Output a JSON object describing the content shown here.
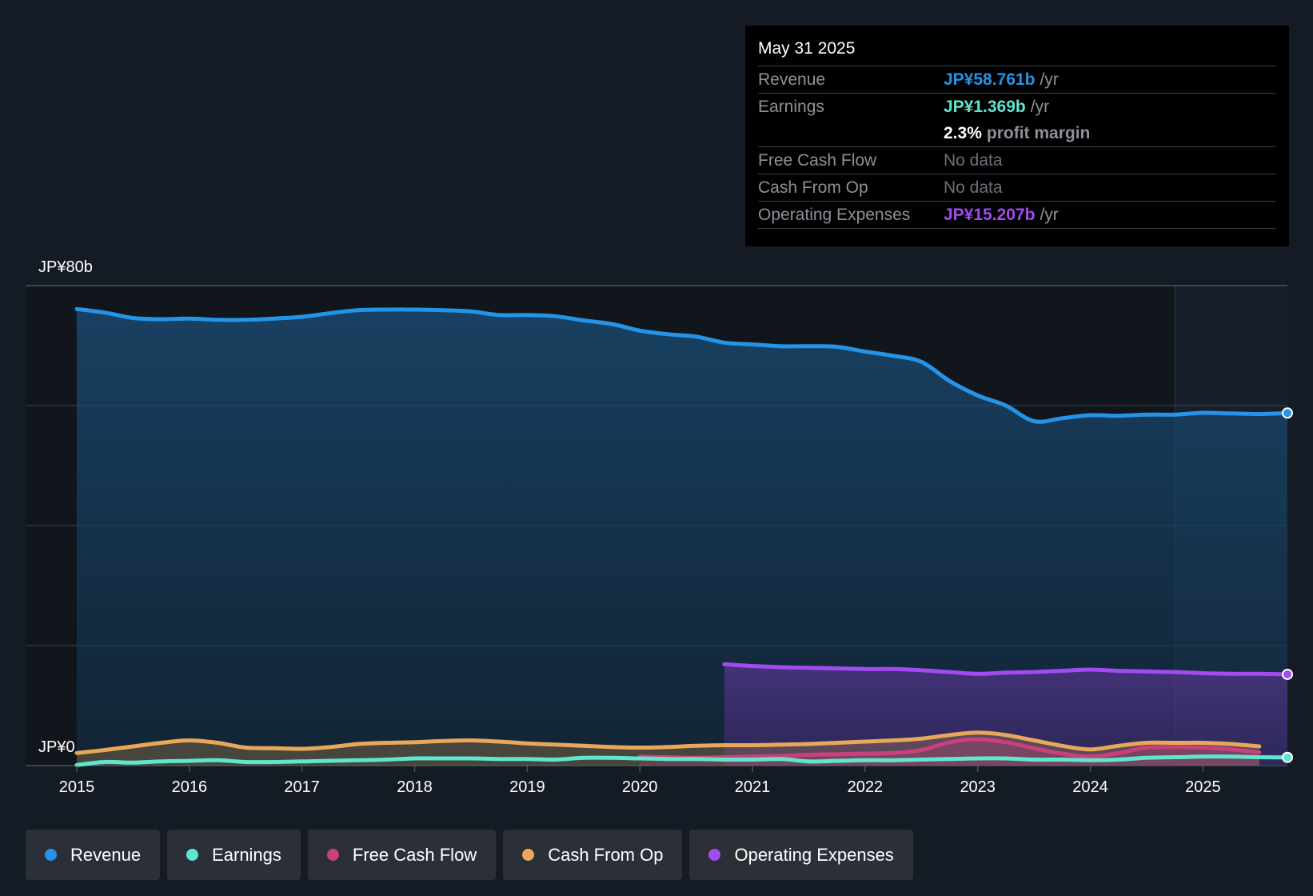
{
  "tooltip": {
    "date": "May 31 2025",
    "rows": {
      "revenue": {
        "label": "Revenue",
        "value": "JP¥58.761b",
        "unit": "/yr"
      },
      "earnings": {
        "label": "Earnings",
        "value": "JP¥1.369b",
        "unit": "/yr"
      },
      "margin": {
        "value": "2.3%",
        "text": "profit margin"
      },
      "fcf": {
        "label": "Free Cash Flow",
        "value": "No data"
      },
      "cfo": {
        "label": "Cash From Op",
        "value": "No data"
      },
      "opex": {
        "label": "Operating Expenses",
        "value": "JP¥15.207b",
        "unit": "/yr"
      }
    }
  },
  "legend": [
    {
      "label": "Revenue",
      "color": "#2394e8"
    },
    {
      "label": "Earnings",
      "color": "#5ee6cf"
    },
    {
      "label": "Free Cash Flow",
      "color": "#c9417a"
    },
    {
      "label": "Cash From Op",
      "color": "#e8a857"
    },
    {
      "label": "Operating Expenses",
      "color": "#a24bf0"
    }
  ],
  "chart_data": {
    "type": "area",
    "title": "",
    "xlabel": "",
    "ylabel": "",
    "y_top_label": "JP¥80b",
    "y_bottom_label": "JP¥0",
    "ylim": [
      0,
      80
    ],
    "xlim": [
      2014.67,
      2025.42
    ],
    "x_ticks": [
      "2015",
      "2016",
      "2017",
      "2018",
      "2019",
      "2020",
      "2021",
      "2022",
      "2023",
      "2024",
      "2025"
    ],
    "forecast_start": 2024.42,
    "series": [
      {
        "name": "Revenue",
        "color": "#2394e8",
        "fill": true,
        "points": [
          [
            2014.67,
            76.1
          ],
          [
            2014.92,
            75.5
          ],
          [
            2015.17,
            74.6
          ],
          [
            2015.42,
            74.4
          ],
          [
            2015.67,
            74.5
          ],
          [
            2015.92,
            74.3
          ],
          [
            2016.17,
            74.3
          ],
          [
            2016.42,
            74.5
          ],
          [
            2016.67,
            74.8
          ],
          [
            2016.92,
            75.4
          ],
          [
            2017.17,
            75.9
          ],
          [
            2017.42,
            76.0
          ],
          [
            2017.67,
            76.0
          ],
          [
            2017.92,
            75.9
          ],
          [
            2018.17,
            75.7
          ],
          [
            2018.42,
            75.1
          ],
          [
            2018.67,
            75.1
          ],
          [
            2018.92,
            74.9
          ],
          [
            2019.17,
            74.2
          ],
          [
            2019.42,
            73.6
          ],
          [
            2019.67,
            72.5
          ],
          [
            2019.92,
            71.9
          ],
          [
            2020.17,
            71.5
          ],
          [
            2020.42,
            70.5
          ],
          [
            2020.67,
            70.2
          ],
          [
            2020.92,
            69.9
          ],
          [
            2021.17,
            69.9
          ],
          [
            2021.42,
            69.8
          ],
          [
            2021.67,
            69.0
          ],
          [
            2021.92,
            68.3
          ],
          [
            2022.17,
            67.3
          ],
          [
            2022.42,
            64.1
          ],
          [
            2022.67,
            61.7
          ],
          [
            2022.92,
            60.0
          ],
          [
            2023.17,
            57.4
          ],
          [
            2023.42,
            57.9
          ],
          [
            2023.67,
            58.4
          ],
          [
            2023.92,
            58.3
          ],
          [
            2024.17,
            58.5
          ],
          [
            2024.42,
            58.5
          ],
          [
            2024.67,
            58.8
          ],
          [
            2024.92,
            58.7
          ],
          [
            2025.17,
            58.6
          ],
          [
            2025.42,
            58.761
          ]
        ]
      },
      {
        "name": "Operating Expenses",
        "color": "#a24bf0",
        "fill": true,
        "points": [
          [
            2020.42,
            16.9
          ],
          [
            2020.67,
            16.6
          ],
          [
            2020.92,
            16.4
          ],
          [
            2021.17,
            16.3
          ],
          [
            2021.42,
            16.2
          ],
          [
            2021.67,
            16.1
          ],
          [
            2021.92,
            16.1
          ],
          [
            2022.17,
            15.9
          ],
          [
            2022.42,
            15.6
          ],
          [
            2022.67,
            15.3
          ],
          [
            2022.92,
            15.5
          ],
          [
            2023.17,
            15.6
          ],
          [
            2023.42,
            15.8
          ],
          [
            2023.67,
            16.0
          ],
          [
            2023.92,
            15.8
          ],
          [
            2024.17,
            15.7
          ],
          [
            2024.42,
            15.6
          ],
          [
            2024.67,
            15.4
          ],
          [
            2024.92,
            15.3
          ],
          [
            2025.17,
            15.3
          ],
          [
            2025.42,
            15.207
          ]
        ]
      },
      {
        "name": "Cash From Op",
        "color": "#e8a857",
        "fill": true,
        "points": [
          [
            2014.67,
            2.1
          ],
          [
            2014.92,
            2.6
          ],
          [
            2015.17,
            3.2
          ],
          [
            2015.42,
            3.8
          ],
          [
            2015.67,
            4.2
          ],
          [
            2015.92,
            3.8
          ],
          [
            2016.17,
            3.0
          ],
          [
            2016.42,
            2.9
          ],
          [
            2016.67,
            2.8
          ],
          [
            2016.92,
            3.1
          ],
          [
            2017.17,
            3.6
          ],
          [
            2017.42,
            3.8
          ],
          [
            2017.67,
            3.9
          ],
          [
            2017.92,
            4.1
          ],
          [
            2018.17,
            4.2
          ],
          [
            2018.42,
            4.0
          ],
          [
            2018.67,
            3.7
          ],
          [
            2018.92,
            3.5
          ],
          [
            2019.17,
            3.3
          ],
          [
            2019.42,
            3.1
          ],
          [
            2019.67,
            3.0
          ],
          [
            2019.92,
            3.1
          ],
          [
            2020.17,
            3.3
          ],
          [
            2020.42,
            3.4
          ],
          [
            2020.67,
            3.4
          ],
          [
            2020.92,
            3.5
          ],
          [
            2021.17,
            3.6
          ],
          [
            2021.42,
            3.8
          ],
          [
            2021.67,
            4.0
          ],
          [
            2021.92,
            4.2
          ],
          [
            2022.17,
            4.5
          ],
          [
            2022.42,
            5.1
          ],
          [
            2022.67,
            5.5
          ],
          [
            2022.92,
            5.1
          ],
          [
            2023.17,
            4.2
          ],
          [
            2023.42,
            3.3
          ],
          [
            2023.67,
            2.7
          ],
          [
            2023.92,
            3.3
          ],
          [
            2024.17,
            3.8
          ],
          [
            2024.42,
            3.8
          ],
          [
            2024.67,
            3.8
          ],
          [
            2024.92,
            3.6
          ],
          [
            2025.17,
            3.2
          ]
        ]
      },
      {
        "name": "Free Cash Flow",
        "color": "#c9417a",
        "fill": true,
        "points": [
          [
            2019.67,
            1.5
          ],
          [
            2019.92,
            1.4
          ],
          [
            2020.17,
            1.3
          ],
          [
            2020.42,
            1.4
          ],
          [
            2020.67,
            1.5
          ],
          [
            2020.92,
            1.6
          ],
          [
            2021.17,
            1.8
          ],
          [
            2021.42,
            1.9
          ],
          [
            2021.67,
            2.0
          ],
          [
            2021.92,
            2.1
          ],
          [
            2022.17,
            2.6
          ],
          [
            2022.42,
            3.9
          ],
          [
            2022.67,
            4.4
          ],
          [
            2022.92,
            3.9
          ],
          [
            2023.17,
            2.9
          ],
          [
            2023.42,
            2.0
          ],
          [
            2023.67,
            1.5
          ],
          [
            2023.92,
            2.1
          ],
          [
            2024.17,
            3.0
          ],
          [
            2024.42,
            3.1
          ],
          [
            2024.67,
            3.0
          ],
          [
            2024.92,
            2.7
          ],
          [
            2025.17,
            2.2
          ]
        ]
      },
      {
        "name": "Earnings",
        "color": "#5ee6cf",
        "fill": false,
        "points": [
          [
            2014.67,
            0.1
          ],
          [
            2014.92,
            0.6
          ],
          [
            2015.17,
            0.5
          ],
          [
            2015.42,
            0.7
          ],
          [
            2015.67,
            0.8
          ],
          [
            2015.92,
            0.9
          ],
          [
            2016.17,
            0.6
          ],
          [
            2016.42,
            0.6
          ],
          [
            2016.67,
            0.7
          ],
          [
            2016.92,
            0.8
          ],
          [
            2017.17,
            0.9
          ],
          [
            2017.42,
            1.0
          ],
          [
            2017.67,
            1.2
          ],
          [
            2017.92,
            1.2
          ],
          [
            2018.17,
            1.2
          ],
          [
            2018.42,
            1.1
          ],
          [
            2018.67,
            1.1
          ],
          [
            2018.92,
            1.0
          ],
          [
            2019.17,
            1.3
          ],
          [
            2019.42,
            1.3
          ],
          [
            2019.67,
            1.2
          ],
          [
            2019.92,
            1.1
          ],
          [
            2020.17,
            1.1
          ],
          [
            2020.42,
            1.0
          ],
          [
            2020.67,
            1.0
          ],
          [
            2020.92,
            1.1
          ],
          [
            2021.17,
            0.7
          ],
          [
            2021.42,
            0.8
          ],
          [
            2021.67,
            0.9
          ],
          [
            2021.92,
            0.9
          ],
          [
            2022.17,
            1.0
          ],
          [
            2022.42,
            1.1
          ],
          [
            2022.67,
            1.2
          ],
          [
            2022.92,
            1.2
          ],
          [
            2023.17,
            1.0
          ],
          [
            2023.42,
            1.0
          ],
          [
            2023.67,
            0.9
          ],
          [
            2023.92,
            1.0
          ],
          [
            2024.17,
            1.3
          ],
          [
            2024.42,
            1.4
          ],
          [
            2024.67,
            1.5
          ],
          [
            2024.92,
            1.5
          ],
          [
            2025.17,
            1.4
          ],
          [
            2025.42,
            1.369
          ]
        ]
      }
    ],
    "end_markers": [
      "Revenue",
      "Operating Expenses",
      "Earnings"
    ]
  }
}
